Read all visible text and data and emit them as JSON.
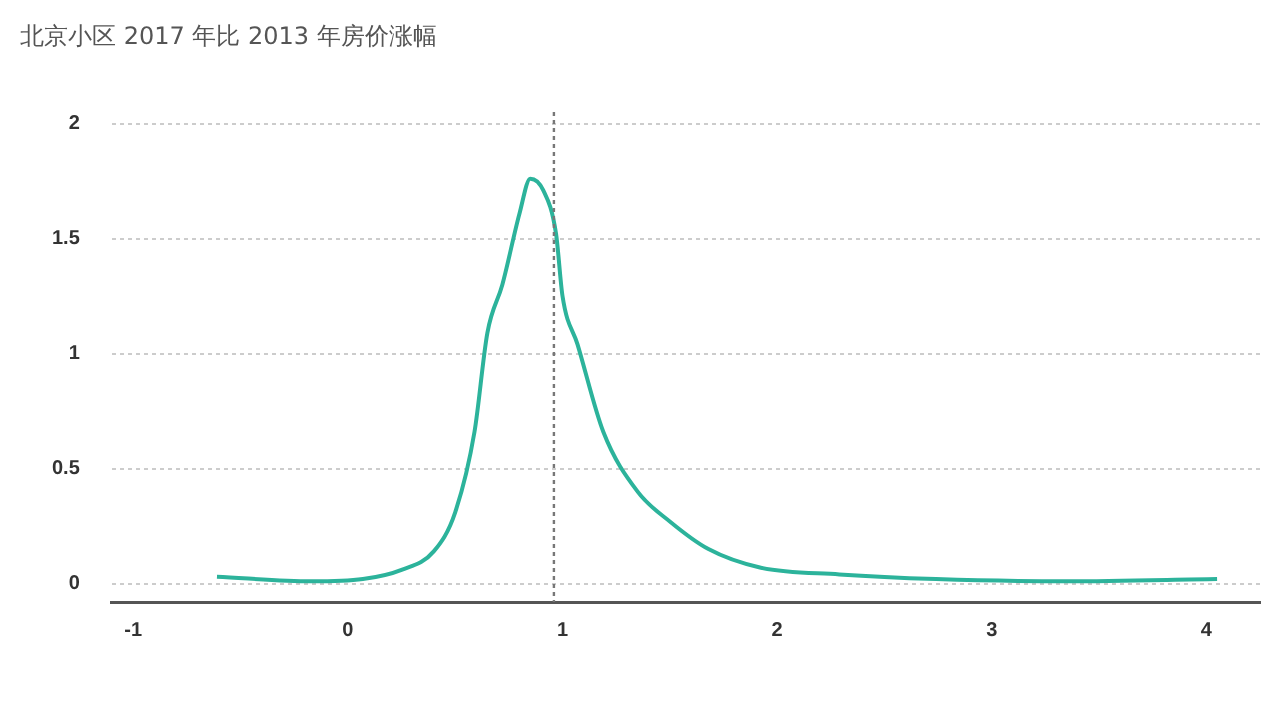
{
  "chart_data": {
    "type": "line",
    "title": "北京小区 2017 年比 2013 年房价涨幅",
    "series": [
      {
        "color": "#2cb39b",
        "x": [
          -0.61,
          -0.17,
          0.07,
          0.25,
          0.4,
          0.5,
          0.59,
          0.65,
          0.72,
          0.8,
          0.85,
          0.91,
          0.97,
          1.0,
          1.07,
          1.19,
          1.35,
          1.5,
          1.68,
          1.92,
          2.29,
          2.74,
          3.35,
          4.05
        ],
        "values": [
          0.03,
          0.01,
          0.02,
          0.06,
          0.14,
          0.31,
          0.66,
          1.09,
          1.3,
          1.61,
          1.76,
          1.71,
          1.52,
          1.25,
          1.04,
          0.66,
          0.4,
          0.27,
          0.15,
          0.07,
          0.04,
          0.02,
          0.01,
          0.02
        ]
      }
    ],
    "xlim": [
      -1.1,
      4.25
    ],
    "xticks": [
      -1,
      0,
      1,
      2,
      3,
      4
    ],
    "ylim": [
      -0.08,
      2.05
    ],
    "yticks": [
      0,
      0.5,
      1,
      1.5,
      2
    ],
    "grid": "y",
    "marker": "none",
    "line_style": "solid",
    "ref_lines": [
      {
        "axis": "x",
        "value": 0.96,
        "color": "#777777",
        "line_style": "dotted"
      }
    ]
  }
}
